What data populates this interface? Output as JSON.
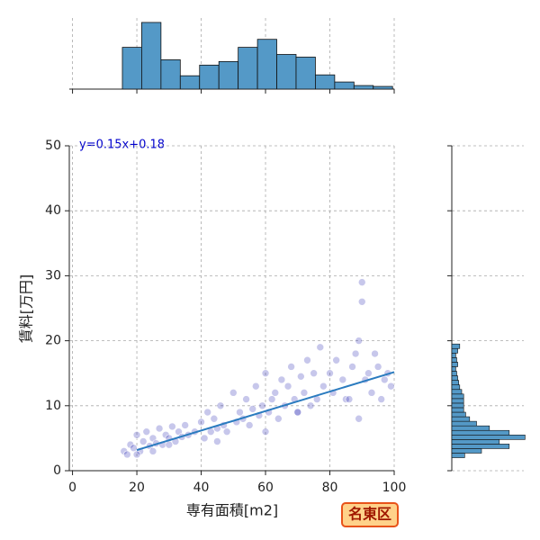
{
  "chart_data": {
    "type": "joint",
    "main": {
      "type": "scatter",
      "xlabel": "専有面積[m2]",
      "ylabel": "賃料[万円]",
      "annotation": "y=0.15x+0.18",
      "annotation_color": "#0000cc",
      "badge": "名東区",
      "xlim": [
        -1,
        100
      ],
      "ylim": [
        0,
        50
      ],
      "xticks": [
        0,
        20,
        40,
        60,
        80,
        100
      ],
      "yticks": [
        0,
        10,
        20,
        30,
        40,
        50
      ],
      "grid": true,
      "color": "#2020b0",
      "x": [
        16,
        17,
        18,
        19,
        20,
        21,
        22,
        23,
        24,
        25,
        26,
        27,
        28,
        29,
        30,
        31,
        32,
        33,
        34,
        35,
        36,
        38,
        40,
        41,
        42,
        43,
        44,
        45,
        46,
        47,
        48,
        50,
        51,
        52,
        53,
        54,
        55,
        56,
        57,
        58,
        59,
        60,
        61,
        62,
        63,
        64,
        65,
        66,
        67,
        68,
        69,
        70,
        71,
        72,
        73,
        74,
        75,
        76,
        77,
        78,
        80,
        81,
        82,
        84,
        85,
        86,
        87,
        88,
        89,
        90,
        91,
        92,
        93,
        94,
        95,
        96,
        97,
        98,
        99,
        90,
        89,
        20,
        25,
        30,
        45,
        60,
        70
      ],
      "y": [
        3,
        2.5,
        4,
        3.5,
        5.5,
        3,
        4.5,
        6,
        3.8,
        5,
        4.2,
        6.5,
        4,
        5.5,
        5,
        6.8,
        4.5,
        6,
        5.2,
        7,
        5.5,
        6,
        7.5,
        5,
        9,
        6,
        8,
        6.5,
        10,
        7,
        6,
        12,
        7.5,
        9,
        8,
        11,
        7,
        9.5,
        13,
        8.5,
        10,
        15,
        9,
        11,
        12,
        8,
        14,
        10,
        13,
        16,
        11,
        9,
        14.5,
        12,
        17,
        10,
        15,
        11,
        19,
        13,
        15,
        12,
        17,
        14,
        11,
        11,
        16,
        18,
        20,
        29,
        14,
        15,
        12,
        18,
        16,
        11,
        14,
        15,
        13,
        26,
        8,
        2.5,
        3,
        4,
        4.5,
        6,
        9
      ],
      "fit": {
        "x": [
          20,
          100
        ],
        "y": [
          3.18,
          15.18
        ],
        "color": "#2a7bbf"
      }
    },
    "top_hist": {
      "type": "histogram",
      "bins": [
        15.5,
        21.5,
        27.5,
        33.5,
        39.5,
        45.5,
        51.5,
        57.5,
        63.5,
        69.5,
        75.5,
        81.5,
        87.5,
        93.5,
        99.5
      ],
      "counts": [
        47,
        75,
        33,
        15,
        27,
        31,
        47,
        56,
        39,
        36,
        16,
        8,
        4,
        3
      ],
      "ylim": [
        0,
        80
      ],
      "color": "#5499c7"
    },
    "right_hist": {
      "type": "histogram",
      "bins": [
        2.0,
        2.7,
        3.4,
        4.1,
        4.8,
        5.5,
        6.2,
        6.9,
        7.6,
        8.3,
        9.0,
        9.7,
        10.4,
        11.1,
        11.8,
        12.5,
        13.2,
        13.9,
        14.6,
        15.3,
        16.0,
        16.7,
        17.4,
        18.1,
        18.8,
        19.5
      ],
      "counts": [
        13,
        30,
        58,
        48,
        74,
        58,
        38,
        25,
        18,
        14,
        12,
        12,
        12,
        12,
        10,
        8,
        7,
        6,
        5,
        4,
        6,
        5,
        4,
        6,
        8
      ],
      "xlim": [
        0,
        80
      ],
      "color": "#5499c7"
    }
  }
}
